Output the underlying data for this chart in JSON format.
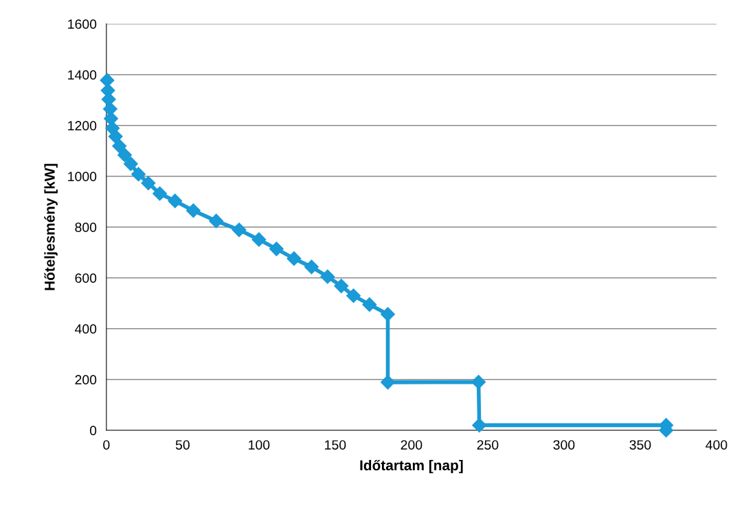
{
  "chart_data": {
    "type": "line",
    "xlabel": "Időtartam [nap]",
    "ylabel": "Hőteljesmény [kW]",
    "x": [
      0.5,
      1,
      1.5,
      2.5,
      3,
      4,
      6,
      8.5,
      12,
      16,
      21,
      27.5,
      35,
      45,
      57,
      72,
      87,
      100,
      111.5,
      123,
      134.5,
      145,
      154,
      162,
      172.5,
      184.5,
      184.5,
      244,
      244.5,
      367,
      367
    ],
    "series": [
      {
        "color": "#1a9ad6",
        "values": [
          1378,
          1338,
          1303,
          1265,
          1227,
          1189,
          1157,
          1119,
          1084,
          1049,
          1008,
          973,
          932,
          903,
          865,
          824,
          789,
          751,
          714,
          676,
          643,
          605,
          568,
          530,
          495,
          457,
          189,
          190,
          20,
          20,
          0
        ]
      }
    ],
    "xlim": [
      0,
      400
    ],
    "xticks": [
      0,
      50,
      100,
      150,
      200,
      250,
      300,
      350,
      400
    ],
    "ylim": [
      0,
      1600
    ],
    "yticks": [
      0,
      200,
      400,
      600,
      800,
      1000,
      1200,
      1400,
      1600
    ],
    "grid": "y",
    "marker": "diamond",
    "line_style": "solid"
  }
}
